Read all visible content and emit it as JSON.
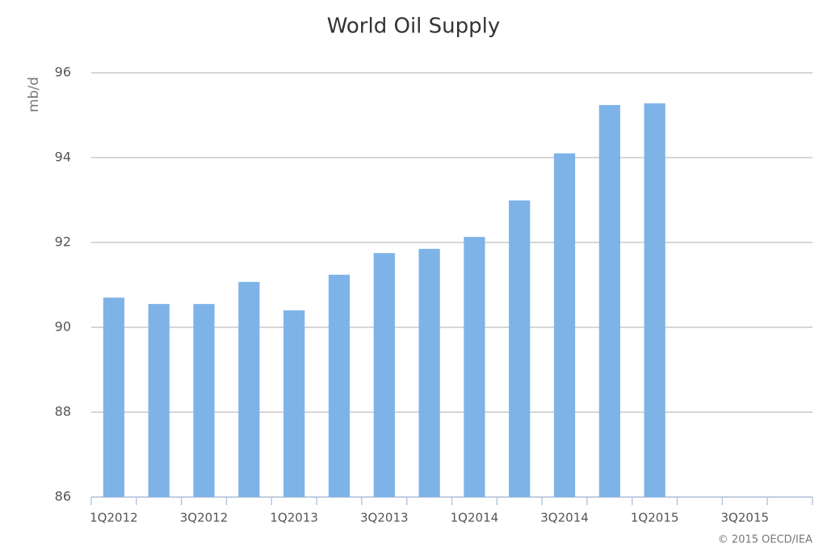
{
  "chart_data": {
    "type": "bar",
    "title": "World Oil Supply",
    "y_label": "mb/d",
    "categories": [
      "1Q2012",
      null,
      "3Q2012",
      null,
      "1Q2013",
      null,
      "3Q2013",
      null,
      "1Q2014",
      null,
      "3Q2014",
      null,
      "1Q2015",
      null,
      "3Q2015",
      null
    ],
    "values": [
      90.7,
      90.55,
      90.55,
      91.07,
      90.4,
      91.24,
      91.75,
      91.85,
      92.13,
      92.99,
      94.1,
      95.24,
      95.28,
      null,
      null,
      null
    ],
    "color": "#7eb3e8",
    "ylim": [
      86,
      96
    ],
    "yticks": [
      86,
      88,
      90,
      92,
      94,
      96
    ],
    "grid": true,
    "credit": "© 2015 OECD/IEA"
  }
}
